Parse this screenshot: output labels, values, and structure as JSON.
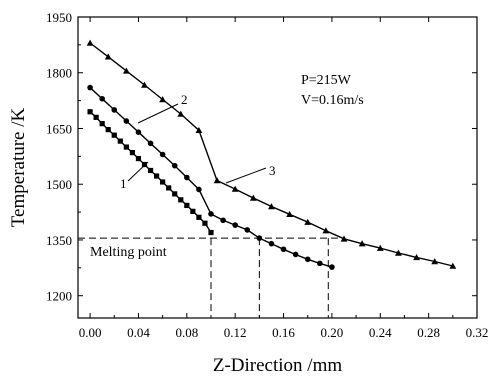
{
  "chart_data": {
    "type": "line",
    "xlabel": "Z-Direction /mm",
    "ylabel": "Temperature /K",
    "xlim": [
      -0.01,
      0.32
    ],
    "ylim": [
      1140,
      1950
    ],
    "xticks": [
      0.0,
      0.04,
      0.08,
      0.12,
      0.16,
      0.2,
      0.24,
      0.28,
      0.32
    ],
    "xtick_labels": [
      "0.00",
      "0.04",
      "0.08",
      "0.12",
      "0.16",
      "0.20",
      "0.24",
      "0.28",
      "0.32"
    ],
    "yticks": [
      1200,
      1350,
      1500,
      1650,
      1800,
      1950
    ],
    "ytick_labels": [
      "1200",
      "1350",
      "1500",
      "1650",
      "1800",
      "1950"
    ],
    "grid": false,
    "annotations": {
      "power": "P=215W",
      "velocity": "V=0.16m/s",
      "melting_point_label": "Melting point",
      "melting_point_value": 1355
    },
    "series": [
      {
        "name": "1",
        "marker": "square",
        "x": [
          0.0,
          0.005,
          0.01,
          0.015,
          0.02,
          0.025,
          0.03,
          0.035,
          0.04,
          0.045,
          0.05,
          0.055,
          0.06,
          0.065,
          0.07,
          0.075,
          0.08,
          0.085,
          0.09,
          0.095,
          0.1
        ],
        "y": [
          1695,
          1680,
          1663,
          1647,
          1632,
          1616,
          1600,
          1585,
          1569,
          1553,
          1537,
          1522,
          1506,
          1490,
          1474,
          1458,
          1443,
          1427,
          1411,
          1395,
          1370
        ]
      },
      {
        "name": "2",
        "marker": "circle",
        "x": [
          0.0,
          0.01,
          0.02,
          0.03,
          0.04,
          0.05,
          0.06,
          0.07,
          0.08,
          0.09,
          0.1,
          0.11,
          0.12,
          0.13,
          0.14,
          0.15,
          0.16,
          0.17,
          0.18,
          0.19,
          0.2
        ],
        "y": [
          1760,
          1730,
          1700,
          1670,
          1640,
          1610,
          1580,
          1550,
          1518,
          1486,
          1420,
          1403,
          1390,
          1377,
          1355,
          1340,
          1325,
          1311,
          1298,
          1287,
          1277
        ]
      },
      {
        "name": "3",
        "marker": "triangle",
        "x": [
          0.0,
          0.015,
          0.03,
          0.045,
          0.06,
          0.075,
          0.09,
          0.105,
          0.12,
          0.135,
          0.15,
          0.165,
          0.18,
          0.195,
          0.21,
          0.225,
          0.24,
          0.255,
          0.27,
          0.285,
          0.3
        ],
        "y": [
          1880,
          1843,
          1805,
          1767,
          1728,
          1689,
          1645,
          1510,
          1487,
          1463,
          1440,
          1419,
          1398,
          1375,
          1353,
          1340,
          1328,
          1315,
          1303,
          1292,
          1280
        ]
      }
    ]
  }
}
